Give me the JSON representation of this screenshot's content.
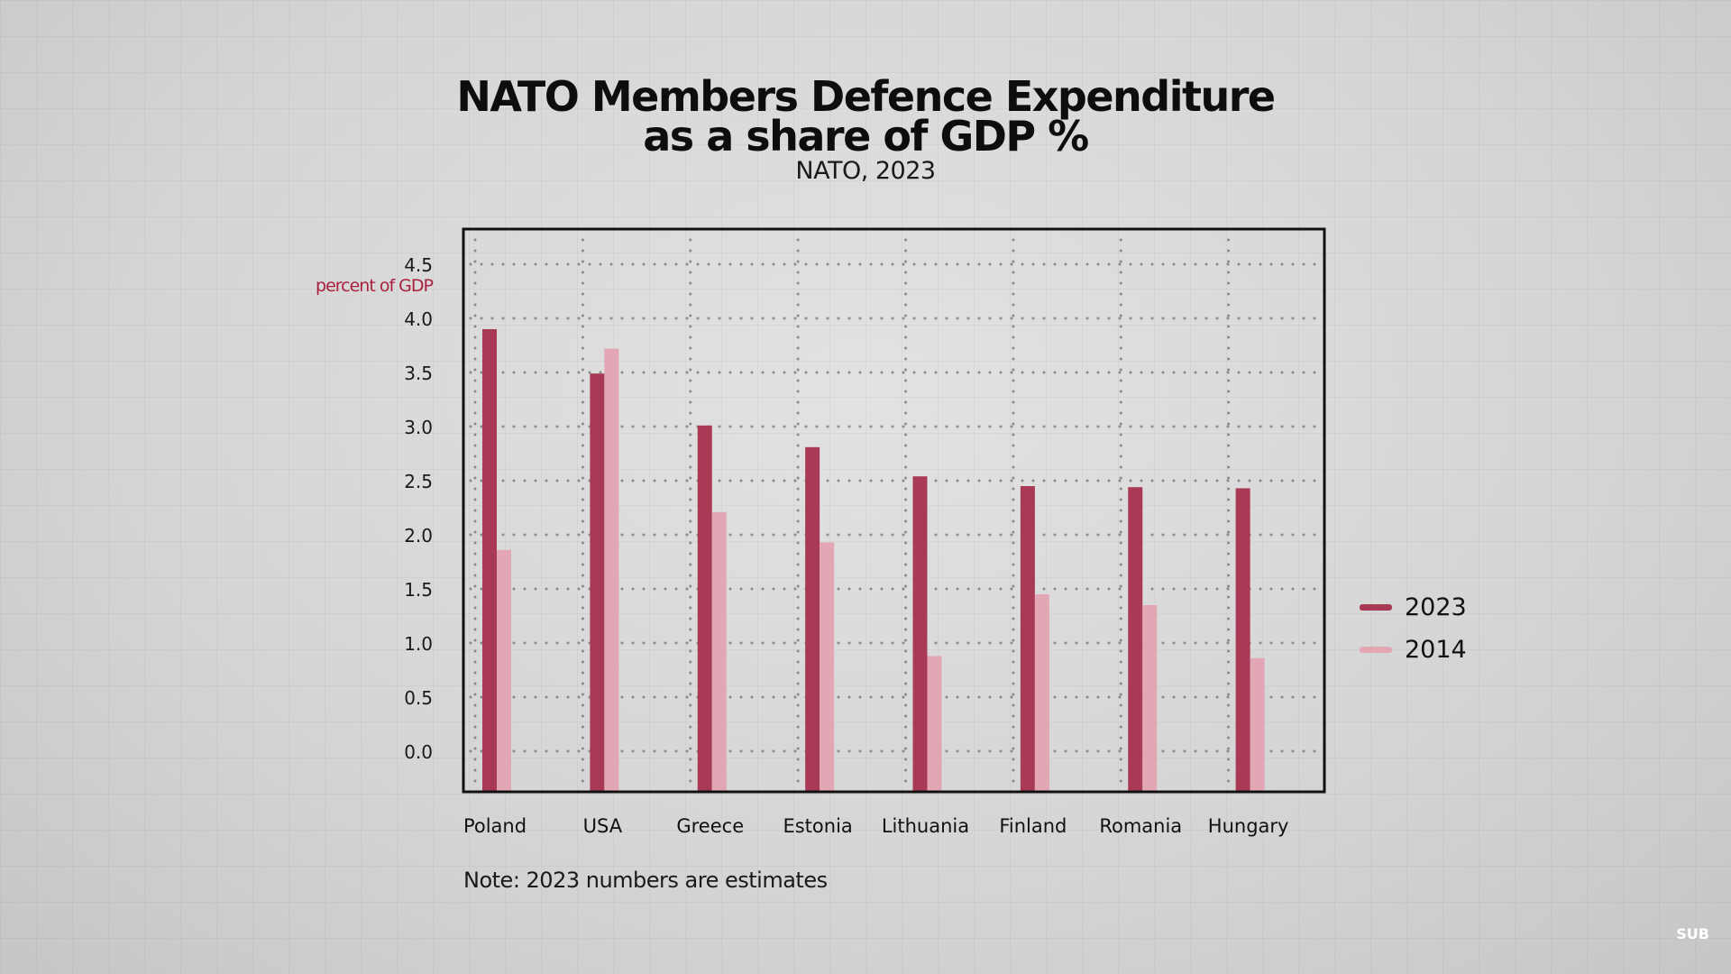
{
  "chart_data": {
    "type": "bar",
    "title_line1": "NATO Members Defence Expenditure",
    "title_line2": "as a share of GDP %",
    "subtitle": "NATO, 2023",
    "ylabel": "percent of GDP",
    "xlabel": "",
    "ylim": [
      -0.4,
      5.0
    ],
    "yticks": [
      "0.0",
      "0.5",
      "1.0",
      "1.5",
      "2.0",
      "2.5",
      "3.0",
      "3.5",
      "4.0",
      "4.5"
    ],
    "categories": [
      "Poland",
      "USA",
      "Greece",
      "Estonia",
      "Lithuania",
      "Finland",
      "Romania",
      "Hungary"
    ],
    "series": [
      {
        "name": "2023",
        "color": "#a83a55",
        "values": [
          3.9,
          3.49,
          3.01,
          2.81,
          2.54,
          2.45,
          2.44,
          2.43
        ]
      },
      {
        "name": "2014",
        "color": "#e2a6b4",
        "values": [
          1.86,
          3.72,
          2.21,
          1.93,
          0.88,
          1.45,
          1.35,
          0.86
        ]
      }
    ],
    "grid": true,
    "grid_style": "dotted",
    "legend_position": "right",
    "note": "Note: 2023 numbers are estimates"
  },
  "logo": "SUB"
}
